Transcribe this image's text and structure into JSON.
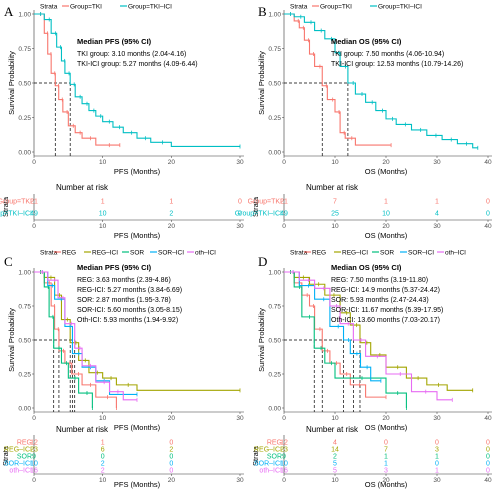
{
  "panels": [
    {
      "letter": "A",
      "legend_title": "Strata",
      "legend": [
        "Group=TKI",
        "Group=TKI–ICI"
      ],
      "ylabel": "Survival Probability",
      "xlabel": "PFS (Months)",
      "x_ticks": [
        "0",
        "10",
        "20",
        "30"
      ],
      "y_ticks": [
        "0.00",
        "0.25",
        "0.50",
        "0.75",
        "1.00"
      ],
      "median_title": "Median PFS (95% CI)",
      "median_lines": [
        "TKI group: 3.10 months (2.04-4.16)",
        "TKI-ICI group: 5.27 months (4.09-6.44)"
      ],
      "risk_title": "Number at risk",
      "risk_strata_label": "Strata",
      "risk_groups": [
        "Group=TKI",
        "Group=TKI–ICI"
      ],
      "risk_xlabel": "PFS (Months)",
      "risk_rows": [
        [
          "21",
          "1",
          "1",
          "0"
        ],
        [
          "49",
          "10",
          "2",
          "0"
        ]
      ]
    },
    {
      "letter": "B",
      "legend_title": "Strata",
      "legend": [
        "Group=TKI",
        "Group=TKI–ICI"
      ],
      "ylabel": "Survival Probability",
      "xlabel": "OS (Months)",
      "x_ticks": [
        "0",
        "10",
        "20",
        "30",
        "40"
      ],
      "y_ticks": [
        "0.00",
        "0.25",
        "0.50",
        "0.75",
        "1.00"
      ],
      "median_title": "Median OS (95% CI)",
      "median_lines": [
        "TKI group: 7.50 months (4.06-10.94)",
        "TKI-ICI group: 12.53 months (10.79-14.26)"
      ],
      "risk_title": "Number at risk",
      "risk_strata_label": "Strata",
      "risk_groups": [
        "Group=TKI",
        "Group=TKI–ICI"
      ],
      "risk_xlabel": "OS (Months)",
      "risk_rows": [
        [
          "21",
          "7",
          "1",
          "1",
          "0"
        ],
        [
          "49",
          "25",
          "10",
          "4",
          "0"
        ]
      ]
    },
    {
      "letter": "C",
      "legend_title": "Strata",
      "legend": [
        "REG",
        "REG–ICI",
        "SOR",
        "SOR–ICI",
        "oth–ICI"
      ],
      "ylabel": "Survival Probability",
      "xlabel": "PFS (Months)",
      "x_ticks": [
        "0",
        "10",
        "20",
        "30"
      ],
      "y_ticks": [
        "0.00",
        "0.25",
        "0.50",
        "0.75",
        "1.00"
      ],
      "median_title": "Median PFS (95% CI)",
      "median_lines": [
        "REG: 3.63 months (2.39-4.86)",
        "REG-ICI: 5.27 months (3.84-6.69)",
        "SOR: 2.87 months (1.95-3.78)",
        "SOR-ICI: 5.60 months (3.05-8.15)",
        "Oth-ICI: 5.93 months (1.94-9.92)"
      ],
      "risk_title": "Number at risk",
      "risk_strata_label": "Strata",
      "risk_groups": [
        "REG",
        "REG–ICI",
        "SOR",
        "SOR–ICI",
        "oth–ICI"
      ],
      "risk_xlabel": "PFS (Months)",
      "risk_rows": [
        [
          "12",
          "1",
          "0"
        ],
        [
          "23",
          "6",
          "2"
        ],
        [
          "9",
          "0",
          "0"
        ],
        [
          "10",
          "2",
          "0"
        ],
        [
          "16",
          "2",
          "0"
        ]
      ]
    },
    {
      "letter": "D",
      "legend_title": "Strata",
      "legend": [
        "REG",
        "REG–ICI",
        "SOR",
        "SOR–ICI",
        "oth–ICI"
      ],
      "ylabel": "Survival Probability",
      "xlabel": "OS (Months)",
      "x_ticks": [
        "0",
        "10",
        "20",
        "30",
        "40"
      ],
      "y_ticks": [
        "0.00",
        "0.25",
        "0.50",
        "0.75",
        "1.00"
      ],
      "median_title": "Median OS (95% CI)",
      "median_lines": [
        "REG: 7.50 months (3.19-11.80)",
        "REG-ICI: 14.9 months (5.37-24.42)",
        "SOR: 5.93 months (2.47-24.43)",
        "SOR-ICI: 11.67 months (5.39-17.95)",
        "Oth-ICI: 13.60 months (7.03-20.17)"
      ],
      "risk_title": "Number at risk",
      "risk_strata_label": "Strata",
      "risk_groups": [
        "REG",
        "REG–ICI",
        "SOR",
        "SOR–ICI",
        "oth–ICI"
      ],
      "risk_xlabel": "OS (Months)",
      "risk_rows": [
        [
          "12",
          "4",
          "0",
          "0",
          "0"
        ],
        [
          "23",
          "14",
          "7",
          "3",
          "0"
        ],
        [
          "9",
          "2",
          "1",
          "1",
          "0"
        ],
        [
          "10",
          "5",
          "1",
          "0",
          "0"
        ],
        [
          "16",
          "5",
          "3",
          "1",
          "0"
        ]
      ]
    }
  ],
  "colors": {
    "TKI": "#F8766D",
    "TKI-ICI": "#00BFC4",
    "REG": "#F8766D",
    "REG-ICI": "#A3A500",
    "SOR": "#00BF7D",
    "SOR-ICI": "#00B0F6",
    "oth-ICI": "#E76BF3"
  },
  "chart_data": [
    {
      "type": "line",
      "subtype": "kaplan-meier",
      "xlim": [
        0,
        30
      ],
      "ylim": [
        0,
        1
      ],
      "x_ticks": [
        0,
        10,
        20,
        30
      ],
      "risk_times": [
        0,
        10,
        20,
        30
      ],
      "series": [
        {
          "name": "Group=TKI",
          "color_key": "TKI",
          "x": [
            0,
            1.5,
            2.0,
            2.5,
            3.1,
            3.6,
            4.2,
            5.0,
            6.0,
            7.0,
            9.0,
            12.5
          ],
          "y": [
            1,
            0.86,
            0.71,
            0.57,
            0.48,
            0.38,
            0.29,
            0.19,
            0.14,
            0.1,
            0.05,
            0.05
          ],
          "end": 12.5
        },
        {
          "name": "Group=TKI–ICI",
          "color_key": "TKI-ICI",
          "x": [
            0,
            1.5,
            2.5,
            3.3,
            4.0,
            4.5,
            5.27,
            6.0,
            7.0,
            8.0,
            9.0,
            10.0,
            11.5,
            13.0,
            15.0,
            17.0,
            20.0
          ],
          "y": [
            1,
            0.96,
            0.86,
            0.76,
            0.66,
            0.57,
            0.49,
            0.4,
            0.35,
            0.3,
            0.26,
            0.22,
            0.18,
            0.14,
            0.1,
            0.07,
            0.04
          ],
          "end": 30
        }
      ],
      "medians": [
        3.1,
        5.27
      ]
    },
    {
      "type": "line",
      "subtype": "kaplan-meier",
      "xlim": [
        0,
        40
      ],
      "ylim": [
        0,
        1
      ],
      "x_ticks": [
        0,
        10,
        20,
        30,
        40
      ],
      "risk_times": [
        0,
        10,
        20,
        30,
        40
      ],
      "series": [
        {
          "name": "Group=TKI",
          "color_key": "TKI",
          "x": [
            0,
            2.0,
            3.0,
            4.0,
            5.0,
            6.0,
            7.5,
            8.5,
            10.0,
            11.0,
            12.0,
            14.0
          ],
          "y": [
            1,
            0.95,
            0.9,
            0.81,
            0.71,
            0.62,
            0.48,
            0.38,
            0.29,
            0.14,
            0.1,
            0.05
          ],
          "end": 21
        },
        {
          "name": "Group=TKI–ICI",
          "color_key": "TKI-ICI",
          "x": [
            0,
            2.0,
            4.0,
            6.0,
            8.0,
            10.0,
            11.0,
            12.53,
            14.0,
            16.0,
            18.0,
            20.0,
            22.0,
            25.0,
            28.0,
            31.0,
            34.0,
            37.0
          ],
          "y": [
            1,
            0.98,
            0.94,
            0.88,
            0.82,
            0.72,
            0.62,
            0.5,
            0.42,
            0.36,
            0.3,
            0.24,
            0.2,
            0.16,
            0.12,
            0.09,
            0.06,
            0.03
          ],
          "end": 38
        }
      ],
      "medians": [
        7.5,
        12.53
      ]
    },
    {
      "type": "line",
      "subtype": "kaplan-meier",
      "xlim": [
        0,
        30
      ],
      "ylim": [
        0,
        1
      ],
      "x_ticks": [
        0,
        10,
        20,
        30
      ],
      "risk_times": [
        0,
        10,
        20
      ],
      "series": [
        {
          "name": "REG",
          "color_key": "REG",
          "x": [
            0,
            1.5,
            2.5,
            3.0,
            3.63,
            4.5,
            5.5,
            7.0,
            9.0,
            12.0
          ],
          "y": [
            1,
            0.92,
            0.75,
            0.58,
            0.42,
            0.33,
            0.25,
            0.17,
            0.08,
            0.0
          ],
          "end": 12
        },
        {
          "name": "REG–ICI",
          "color_key": "REG-ICI",
          "x": [
            0,
            1.5,
            3.0,
            4.0,
            5.27,
            6.5,
            8.0,
            10.0,
            12.0,
            15.0
          ],
          "y": [
            1,
            0.96,
            0.83,
            0.65,
            0.48,
            0.35,
            0.26,
            0.22,
            0.17,
            0.13
          ],
          "end": 30
        },
        {
          "name": "SOR",
          "color_key": "SOR",
          "x": [
            0,
            1.5,
            2.2,
            2.87,
            4.0,
            5.0,
            6.5,
            8.5
          ],
          "y": [
            1,
            0.89,
            0.67,
            0.44,
            0.33,
            0.22,
            0.11,
            0.0
          ],
          "end": 8.5
        },
        {
          "name": "SOR–ICI",
          "color_key": "SOR-ICI",
          "x": [
            0,
            2.0,
            3.0,
            4.5,
            5.6,
            7.0,
            9.0,
            11.0
          ],
          "y": [
            1,
            0.9,
            0.8,
            0.6,
            0.4,
            0.3,
            0.2,
            0.1
          ],
          "end": 15
        },
        {
          "name": "oth–ICI",
          "color_key": "oth-ICI",
          "x": [
            0,
            2.0,
            3.5,
            4.5,
            5.93,
            7.0,
            9.0,
            11.0,
            13.0
          ],
          "y": [
            1,
            0.94,
            0.81,
            0.62,
            0.44,
            0.31,
            0.19,
            0.12,
            0.06
          ],
          "end": 15
        }
      ],
      "medians": [
        3.63,
        5.27,
        2.87,
        5.6,
        5.93
      ]
    },
    {
      "type": "line",
      "subtype": "kaplan-meier",
      "xlim": [
        0,
        40
      ],
      "ylim": [
        0,
        1
      ],
      "x_ticks": [
        0,
        10,
        20,
        30,
        40
      ],
      "risk_times": [
        0,
        10,
        20,
        30,
        40
      ],
      "series": [
        {
          "name": "REG",
          "color_key": "REG",
          "x": [
            0,
            2.0,
            3.5,
            5.0,
            6.0,
            7.5,
            9.0,
            11.0,
            13.0,
            16.0
          ],
          "y": [
            1,
            0.92,
            0.83,
            0.75,
            0.58,
            0.42,
            0.33,
            0.25,
            0.17,
            0.08
          ],
          "end": 20
        },
        {
          "name": "REG–ICI",
          "color_key": "REG-ICI",
          "x": [
            0,
            2.0,
            5.0,
            8.0,
            11.0,
            13.0,
            14.9,
            17.0,
            20.0,
            24.0,
            28.0,
            32.0
          ],
          "y": [
            1,
            0.96,
            0.91,
            0.83,
            0.7,
            0.61,
            0.48,
            0.39,
            0.3,
            0.22,
            0.17,
            0.13
          ],
          "end": 37
        },
        {
          "name": "SOR",
          "color_key": "SOR",
          "x": [
            0,
            2.0,
            3.5,
            5.93,
            8.0,
            10.0,
            20.0,
            24.0
          ],
          "y": [
            1,
            0.89,
            0.67,
            0.44,
            0.33,
            0.22,
            0.11,
            0.0
          ],
          "end": 24
        },
        {
          "name": "SOR–ICI",
          "color_key": "SOR-ICI",
          "x": [
            0,
            3.0,
            6.0,
            9.0,
            11.67,
            13.0,
            15.0,
            17.0
          ],
          "y": [
            1,
            0.9,
            0.8,
            0.6,
            0.5,
            0.4,
            0.3,
            0.2
          ],
          "end": 19
        },
        {
          "name": "oth–ICI",
          "color_key": "oth-ICI",
          "x": [
            0,
            3.0,
            6.0,
            9.0,
            11.0,
            13.6,
            16.0,
            20.0,
            25.0,
            30.0
          ],
          "y": [
            1,
            0.94,
            0.88,
            0.75,
            0.62,
            0.5,
            0.38,
            0.25,
            0.12,
            0.06
          ],
          "end": 33
        }
      ],
      "medians": [
        7.5,
        14.9,
        5.93,
        11.67,
        13.6
      ]
    }
  ]
}
